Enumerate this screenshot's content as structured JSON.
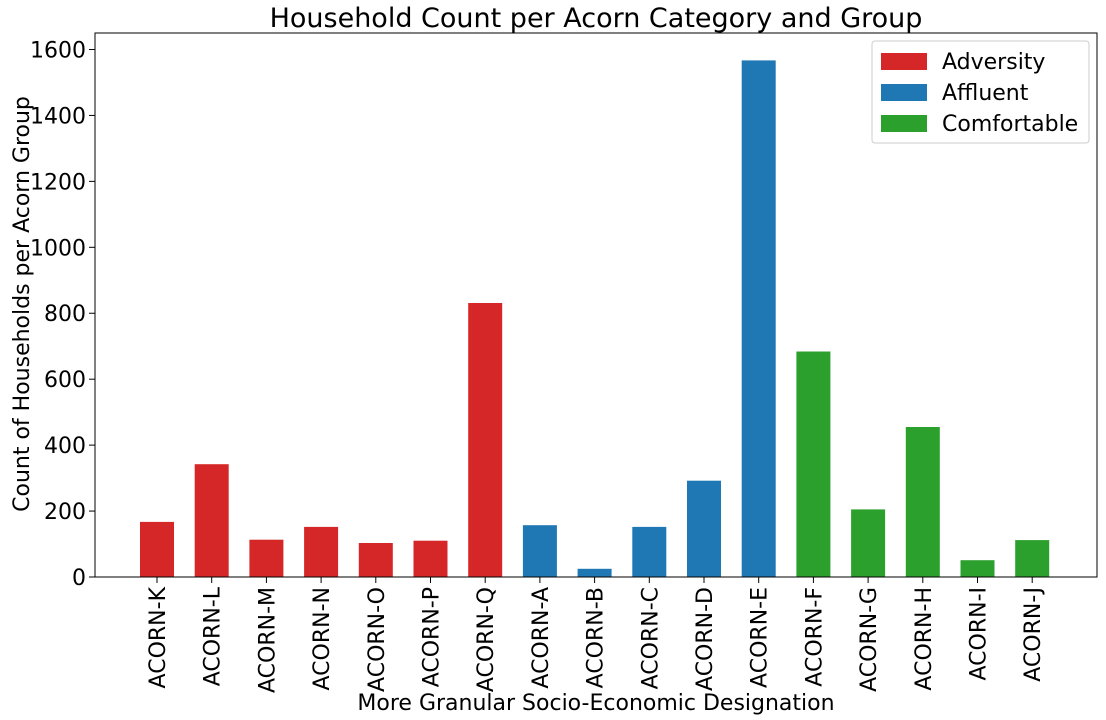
{
  "chart_data": {
    "type": "bar",
    "title": "Household Count per Acorn Category and Group",
    "xlabel": "More Granular Socio-Economic Designation",
    "ylabel": "Count of Households per Acorn Group",
    "ylim": [
      0,
      1650
    ],
    "yticks": [
      0,
      200,
      400,
      600,
      800,
      1000,
      1200,
      1400,
      1600
    ],
    "grid": false,
    "legend_position": "top-right",
    "categories": [
      "ACORN-K",
      "ACORN-L",
      "ACORN-M",
      "ACORN-N",
      "ACORN-O",
      "ACORN-P",
      "ACORN-Q",
      "ACORN-A",
      "ACORN-B",
      "ACORN-C",
      "ACORN-D",
      "ACORN-E",
      "ACORN-F",
      "ACORN-G",
      "ACORN-H",
      "ACORN-I",
      "ACORN-J"
    ],
    "values": [
      167,
      342,
      113,
      152,
      103,
      110,
      831,
      157,
      25,
      152,
      292,
      1567,
      684,
      205,
      455,
      51,
      112
    ],
    "groups": [
      "Adversity",
      "Adversity",
      "Adversity",
      "Adversity",
      "Adversity",
      "Adversity",
      "Adversity",
      "Affluent",
      "Affluent",
      "Affluent",
      "Affluent",
      "Affluent",
      "Comfortable",
      "Comfortable",
      "Comfortable",
      "Comfortable",
      "Comfortable"
    ],
    "series": [
      {
        "name": "Adversity",
        "color": "#d62728"
      },
      {
        "name": "Affluent",
        "color": "#1f77b4"
      },
      {
        "name": "Comfortable",
        "color": "#2ca02c"
      }
    ]
  }
}
